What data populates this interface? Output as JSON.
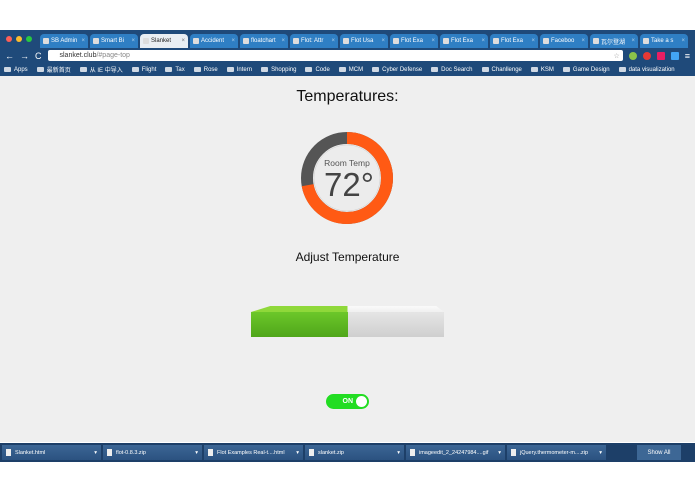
{
  "browser": {
    "tabs": [
      {
        "label": "SB Admin"
      },
      {
        "label": "Smart Bi"
      },
      {
        "label": "Slanket",
        "active": true
      },
      {
        "label": "Accident"
      },
      {
        "label": "floatchart"
      },
      {
        "label": "Flot: Attr"
      },
      {
        "label": "Flot Usa"
      },
      {
        "label": "Flot Exa"
      },
      {
        "label": "Flot Exa"
      },
      {
        "label": "Flot Exa"
      },
      {
        "label": "Faceboo"
      },
      {
        "label": "瓦尔登湖"
      },
      {
        "label": "Take a s"
      }
    ],
    "url_host": "slanket.club",
    "url_rest": "/#page-top",
    "bookmarks": [
      "Apps",
      "最新首页",
      "从 IE 中导入",
      "Flight",
      "Tax",
      "Rose",
      "Intern",
      "Shopping",
      "Code",
      "MCM",
      "Cyber Defense",
      "Doc Search",
      "Chanllenge",
      "KSM",
      "Game Design",
      "data visualization"
    ]
  },
  "page": {
    "title": "Temperatures:",
    "gauge": {
      "label": "Room Temp",
      "value": "72°",
      "fill_percent": 72,
      "fill_color": "#ff5a14",
      "track_color": "#555555"
    },
    "adjust_title": "Adjust Temperature",
    "slider": {
      "percent": 50
    },
    "toggle": {
      "label": "ON",
      "state": true,
      "color": "#22dd22"
    }
  },
  "downloads": {
    "items": [
      "Slanket.html",
      "flot-0.8.3.zip",
      "Flot Examples  Real-t....html",
      "slanket.zip",
      "imageedit_2_24247984....gif",
      "jQuery.thermometer-m....zip"
    ],
    "show_all": "Show All"
  }
}
